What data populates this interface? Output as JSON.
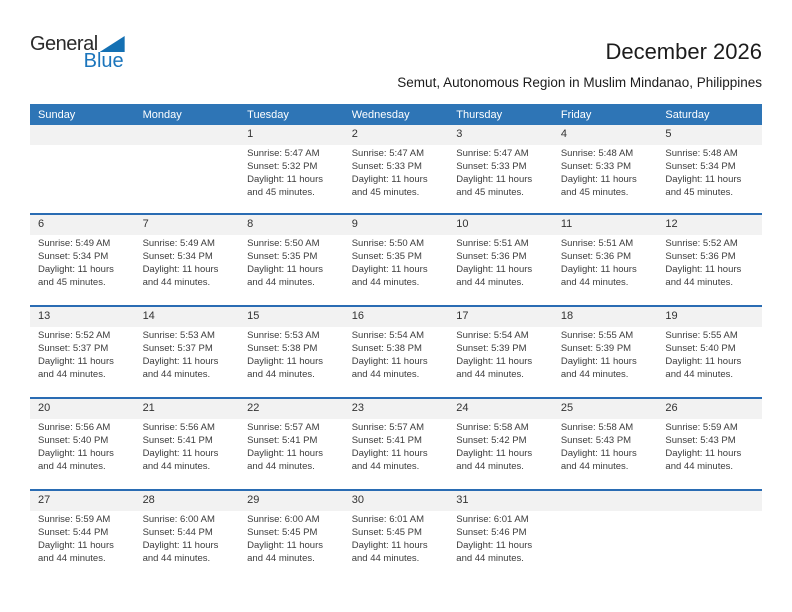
{
  "logo": {
    "general": "General",
    "blue": "Blue"
  },
  "title": "December 2026",
  "subtitle": "Semut, Autonomous Region in Muslim Mindanao, Philippines",
  "weekday_headers": [
    "Sunday",
    "Monday",
    "Tuesday",
    "Wednesday",
    "Thursday",
    "Friday",
    "Saturday"
  ],
  "colors": {
    "header_bg": "#2e75b6",
    "week_divider": "#2a6cb3",
    "day_number_band": "#f2f2f2",
    "logo_blue": "#1b75bc",
    "logo_triangle": "#1470b3"
  },
  "weeks": [
    [
      null,
      null,
      {
        "day": "1",
        "sunrise": "Sunrise: 5:47 AM",
        "sunset": "Sunset: 5:32 PM",
        "daylight1": "Daylight: 11 hours",
        "daylight2": "and 45 minutes."
      },
      {
        "day": "2",
        "sunrise": "Sunrise: 5:47 AM",
        "sunset": "Sunset: 5:33 PM",
        "daylight1": "Daylight: 11 hours",
        "daylight2": "and 45 minutes."
      },
      {
        "day": "3",
        "sunrise": "Sunrise: 5:47 AM",
        "sunset": "Sunset: 5:33 PM",
        "daylight1": "Daylight: 11 hours",
        "daylight2": "and 45 minutes."
      },
      {
        "day": "4",
        "sunrise": "Sunrise: 5:48 AM",
        "sunset": "Sunset: 5:33 PM",
        "daylight1": "Daylight: 11 hours",
        "daylight2": "and 45 minutes."
      },
      {
        "day": "5",
        "sunrise": "Sunrise: 5:48 AM",
        "sunset": "Sunset: 5:34 PM",
        "daylight1": "Daylight: 11 hours",
        "daylight2": "and 45 minutes."
      }
    ],
    [
      {
        "day": "6",
        "sunrise": "Sunrise: 5:49 AM",
        "sunset": "Sunset: 5:34 PM",
        "daylight1": "Daylight: 11 hours",
        "daylight2": "and 45 minutes."
      },
      {
        "day": "7",
        "sunrise": "Sunrise: 5:49 AM",
        "sunset": "Sunset: 5:34 PM",
        "daylight1": "Daylight: 11 hours",
        "daylight2": "and 44 minutes."
      },
      {
        "day": "8",
        "sunrise": "Sunrise: 5:50 AM",
        "sunset": "Sunset: 5:35 PM",
        "daylight1": "Daylight: 11 hours",
        "daylight2": "and 44 minutes."
      },
      {
        "day": "9",
        "sunrise": "Sunrise: 5:50 AM",
        "sunset": "Sunset: 5:35 PM",
        "daylight1": "Daylight: 11 hours",
        "daylight2": "and 44 minutes."
      },
      {
        "day": "10",
        "sunrise": "Sunrise: 5:51 AM",
        "sunset": "Sunset: 5:36 PM",
        "daylight1": "Daylight: 11 hours",
        "daylight2": "and 44 minutes."
      },
      {
        "day": "11",
        "sunrise": "Sunrise: 5:51 AM",
        "sunset": "Sunset: 5:36 PM",
        "daylight1": "Daylight: 11 hours",
        "daylight2": "and 44 minutes."
      },
      {
        "day": "12",
        "sunrise": "Sunrise: 5:52 AM",
        "sunset": "Sunset: 5:36 PM",
        "daylight1": "Daylight: 11 hours",
        "daylight2": "and 44 minutes."
      }
    ],
    [
      {
        "day": "13",
        "sunrise": "Sunrise: 5:52 AM",
        "sunset": "Sunset: 5:37 PM",
        "daylight1": "Daylight: 11 hours",
        "daylight2": "and 44 minutes."
      },
      {
        "day": "14",
        "sunrise": "Sunrise: 5:53 AM",
        "sunset": "Sunset: 5:37 PM",
        "daylight1": "Daylight: 11 hours",
        "daylight2": "and 44 minutes."
      },
      {
        "day": "15",
        "sunrise": "Sunrise: 5:53 AM",
        "sunset": "Sunset: 5:38 PM",
        "daylight1": "Daylight: 11 hours",
        "daylight2": "and 44 minutes."
      },
      {
        "day": "16",
        "sunrise": "Sunrise: 5:54 AM",
        "sunset": "Sunset: 5:38 PM",
        "daylight1": "Daylight: 11 hours",
        "daylight2": "and 44 minutes."
      },
      {
        "day": "17",
        "sunrise": "Sunrise: 5:54 AM",
        "sunset": "Sunset: 5:39 PM",
        "daylight1": "Daylight: 11 hours",
        "daylight2": "and 44 minutes."
      },
      {
        "day": "18",
        "sunrise": "Sunrise: 5:55 AM",
        "sunset": "Sunset: 5:39 PM",
        "daylight1": "Daylight: 11 hours",
        "daylight2": "and 44 minutes."
      },
      {
        "day": "19",
        "sunrise": "Sunrise: 5:55 AM",
        "sunset": "Sunset: 5:40 PM",
        "daylight1": "Daylight: 11 hours",
        "daylight2": "and 44 minutes."
      }
    ],
    [
      {
        "day": "20",
        "sunrise": "Sunrise: 5:56 AM",
        "sunset": "Sunset: 5:40 PM",
        "daylight1": "Daylight: 11 hours",
        "daylight2": "and 44 minutes."
      },
      {
        "day": "21",
        "sunrise": "Sunrise: 5:56 AM",
        "sunset": "Sunset: 5:41 PM",
        "daylight1": "Daylight: 11 hours",
        "daylight2": "and 44 minutes."
      },
      {
        "day": "22",
        "sunrise": "Sunrise: 5:57 AM",
        "sunset": "Sunset: 5:41 PM",
        "daylight1": "Daylight: 11 hours",
        "daylight2": "and 44 minutes."
      },
      {
        "day": "23",
        "sunrise": "Sunrise: 5:57 AM",
        "sunset": "Sunset: 5:41 PM",
        "daylight1": "Daylight: 11 hours",
        "daylight2": "and 44 minutes."
      },
      {
        "day": "24",
        "sunrise": "Sunrise: 5:58 AM",
        "sunset": "Sunset: 5:42 PM",
        "daylight1": "Daylight: 11 hours",
        "daylight2": "and 44 minutes."
      },
      {
        "day": "25",
        "sunrise": "Sunrise: 5:58 AM",
        "sunset": "Sunset: 5:43 PM",
        "daylight1": "Daylight: 11 hours",
        "daylight2": "and 44 minutes."
      },
      {
        "day": "26",
        "sunrise": "Sunrise: 5:59 AM",
        "sunset": "Sunset: 5:43 PM",
        "daylight1": "Daylight: 11 hours",
        "daylight2": "and 44 minutes."
      }
    ],
    [
      {
        "day": "27",
        "sunrise": "Sunrise: 5:59 AM",
        "sunset": "Sunset: 5:44 PM",
        "daylight1": "Daylight: 11 hours",
        "daylight2": "and 44 minutes."
      },
      {
        "day": "28",
        "sunrise": "Sunrise: 6:00 AM",
        "sunset": "Sunset: 5:44 PM",
        "daylight1": "Daylight: 11 hours",
        "daylight2": "and 44 minutes."
      },
      {
        "day": "29",
        "sunrise": "Sunrise: 6:00 AM",
        "sunset": "Sunset: 5:45 PM",
        "daylight1": "Daylight: 11 hours",
        "daylight2": "and 44 minutes."
      },
      {
        "day": "30",
        "sunrise": "Sunrise: 6:01 AM",
        "sunset": "Sunset: 5:45 PM",
        "daylight1": "Daylight: 11 hours",
        "daylight2": "and 44 minutes."
      },
      {
        "day": "31",
        "sunrise": "Sunrise: 6:01 AM",
        "sunset": "Sunset: 5:46 PM",
        "daylight1": "Daylight: 11 hours",
        "daylight2": "and 44 minutes."
      },
      null,
      null
    ]
  ]
}
